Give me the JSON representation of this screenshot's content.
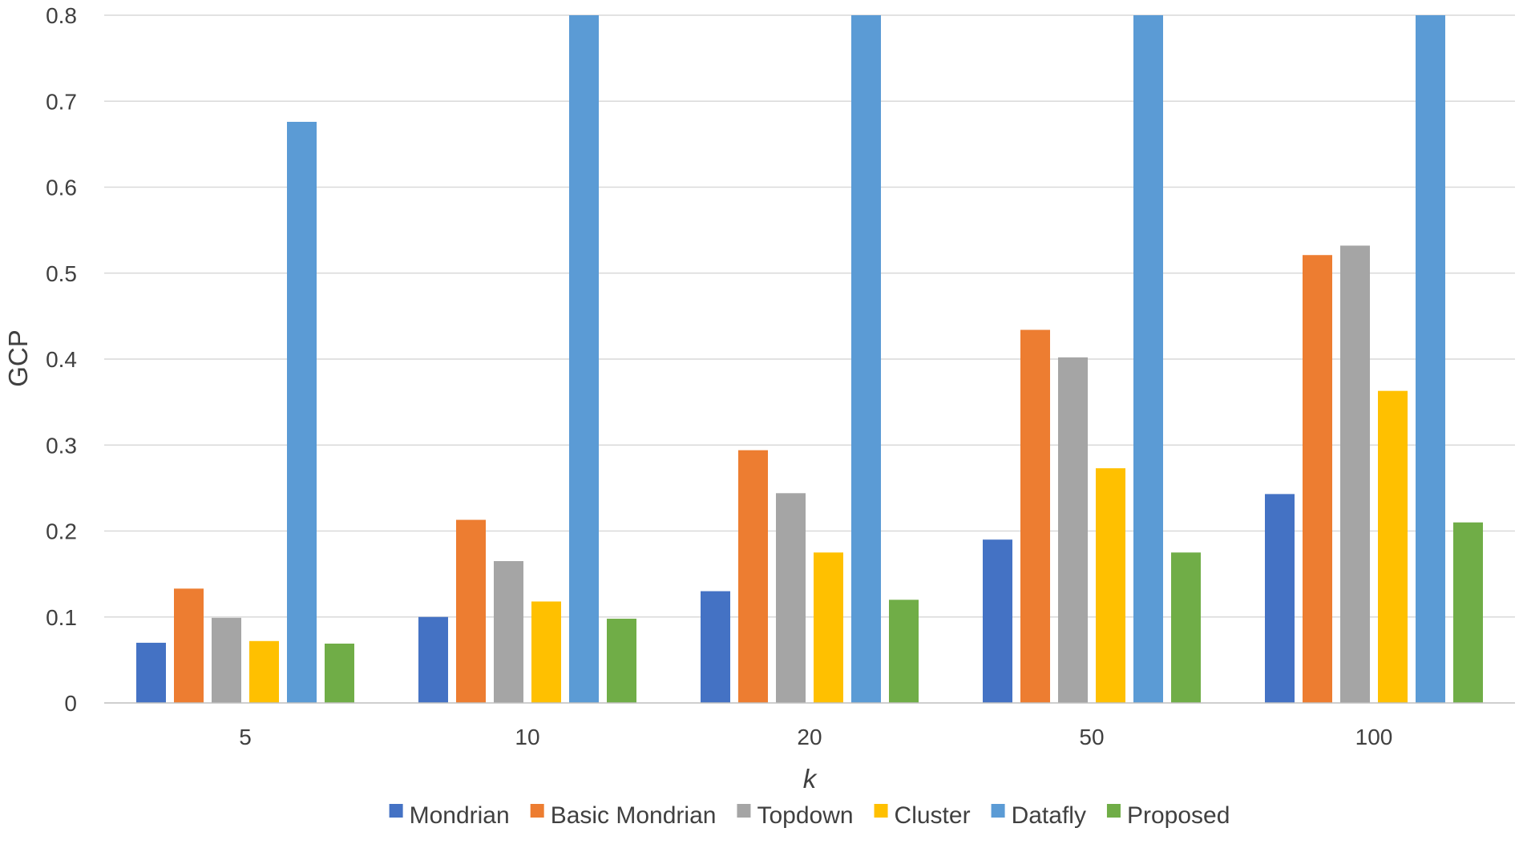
{
  "chart_data": {
    "type": "bar",
    "title": "",
    "xlabel": "k",
    "ylabel": "GCP",
    "categories": [
      "5",
      "10",
      "20",
      "50",
      "100"
    ],
    "ylim": [
      0,
      0.8
    ],
    "yticks": [
      "0",
      "0.1",
      "0.2",
      "0.3",
      "0.4",
      "0.5",
      "0.6",
      "0.7",
      "0.8"
    ],
    "grid": true,
    "legend_position": "bottom",
    "series": [
      {
        "name": "Mondrian",
        "color": "#4472c4",
        "values": [
          0.07,
          0.1,
          0.13,
          0.19,
          0.243
        ]
      },
      {
        "name": "Basic Mondrian",
        "color": "#ed7d31",
        "values": [
          0.133,
          0.213,
          0.294,
          0.434,
          0.521
        ]
      },
      {
        "name": "Topdown",
        "color": "#a5a5a5",
        "values": [
          0.099,
          0.165,
          0.244,
          0.402,
          0.532
        ]
      },
      {
        "name": "Cluster",
        "color": "#ffc000",
        "values": [
          0.072,
          0.118,
          0.175,
          0.273,
          0.363
        ]
      },
      {
        "name": "Datafly",
        "color": "#5b9bd5",
        "values": [
          0.676,
          0.8,
          0.8,
          0.8,
          0.8
        ]
      },
      {
        "name": "Proposed",
        "color": "#70ad47",
        "values": [
          0.069,
          0.098,
          0.12,
          0.175,
          0.21
        ]
      }
    ]
  }
}
